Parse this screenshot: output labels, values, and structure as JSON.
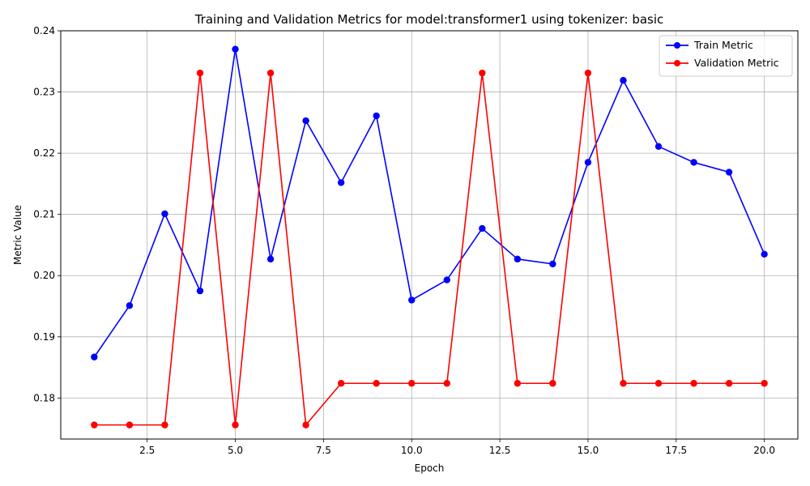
{
  "chart_data": {
    "type": "line",
    "title": "Training and Validation Metrics for model:transformer1 using tokenizer: basic",
    "xlabel": "Epoch",
    "ylabel": "Metric Value",
    "xlim": [
      0.05,
      20.95
    ],
    "ylim": [
      0.1733,
      0.24
    ],
    "xticks": [
      2.5,
      5.0,
      7.5,
      10.0,
      12.5,
      15.0,
      17.5,
      20.0
    ],
    "xtick_labels": [
      "2.5",
      "5.0",
      "7.5",
      "10.0",
      "12.5",
      "15.0",
      "17.5",
      "20.0"
    ],
    "yticks": [
      0.18,
      0.19,
      0.2,
      0.21,
      0.22,
      0.23,
      0.24
    ],
    "ytick_labels": [
      "0.18",
      "0.19",
      "0.20",
      "0.21",
      "0.22",
      "0.23",
      "0.24"
    ],
    "grid": true,
    "legend_position": "top-right",
    "x": [
      1,
      2,
      3,
      4,
      5,
      6,
      7,
      8,
      9,
      10,
      11,
      12,
      13,
      14,
      15,
      16,
      17,
      18,
      19,
      20
    ],
    "series": [
      {
        "name": "Train Metric",
        "color": "#0000ff",
        "marker": "circle",
        "values": [
          0.1867,
          0.1951,
          0.2101,
          0.1975,
          0.237,
          0.2027,
          0.2253,
          0.2152,
          0.2261,
          0.196,
          0.1993,
          0.2077,
          0.2027,
          0.2019,
          0.2185,
          0.2319,
          0.2211,
          0.2185,
          0.2169,
          0.2035
        ]
      },
      {
        "name": "Validation Metric",
        "color": "#ff0000",
        "marker": "circle",
        "values": [
          0.1756,
          0.1756,
          0.1756,
          0.2331,
          0.1756,
          0.2331,
          0.1756,
          0.1824,
          0.1824,
          0.1824,
          0.1824,
          0.2331,
          0.1824,
          0.1824,
          0.2331,
          0.1824,
          0.1824,
          0.1824,
          0.1824,
          0.1824
        ]
      }
    ]
  }
}
